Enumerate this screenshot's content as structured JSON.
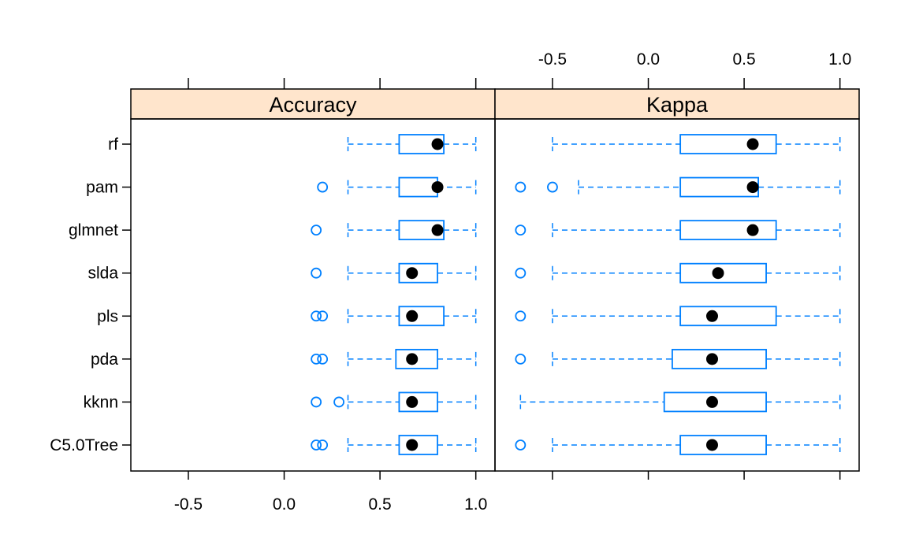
{
  "chart_data": {
    "type": "boxplot",
    "layout": "lattice bwplot, two horizontal panels",
    "x_range": [
      -0.8,
      1.1
    ],
    "ticks": [
      -0.5,
      0.0,
      0.5,
      1.0
    ],
    "tick_labels": [
      "-0.5",
      "0.0",
      "0.5",
      "1.0"
    ],
    "models": [
      "rf",
      "pam",
      "glmnet",
      "slda",
      "pls",
      "pda",
      "kknn",
      "C5.0Tree"
    ],
    "colors": {
      "box": "#0080ff",
      "median": "#000000",
      "strip": "#ffe5cc",
      "frame": "#000000"
    },
    "panels": [
      {
        "name": "Accuracy",
        "tick_side": "bottom",
        "boxes": [
          {
            "model": "rf",
            "whisker_low": 0.333,
            "q1": 0.6,
            "median": 0.8,
            "q3": 0.833,
            "whisker_high": 1.0,
            "outliers": []
          },
          {
            "model": "pam",
            "whisker_low": 0.333,
            "q1": 0.6,
            "median": 0.8,
            "q3": 0.8,
            "whisker_high": 1.0,
            "outliers": [
              0.2
            ]
          },
          {
            "model": "glmnet",
            "whisker_low": 0.333,
            "q1": 0.6,
            "median": 0.8,
            "q3": 0.833,
            "whisker_high": 1.0,
            "outliers": [
              0.167
            ]
          },
          {
            "model": "slda",
            "whisker_low": 0.333,
            "q1": 0.6,
            "median": 0.667,
            "q3": 0.8,
            "whisker_high": 1.0,
            "outliers": [
              0.167
            ]
          },
          {
            "model": "pls",
            "whisker_low": 0.333,
            "q1": 0.6,
            "median": 0.667,
            "q3": 0.833,
            "whisker_high": 1.0,
            "outliers": [
              0.167,
              0.2
            ]
          },
          {
            "model": "pda",
            "whisker_low": 0.333,
            "q1": 0.583,
            "median": 0.667,
            "q3": 0.8,
            "whisker_high": 1.0,
            "outliers": [
              0.167,
              0.2
            ]
          },
          {
            "model": "kknn",
            "whisker_low": 0.333,
            "q1": 0.6,
            "median": 0.667,
            "q3": 0.8,
            "whisker_high": 1.0,
            "outliers": [
              0.167,
              0.286
            ]
          },
          {
            "model": "C5.0Tree",
            "whisker_low": 0.333,
            "q1": 0.6,
            "median": 0.667,
            "q3": 0.8,
            "whisker_high": 1.0,
            "outliers": [
              0.167,
              0.2
            ]
          }
        ]
      },
      {
        "name": "Kappa",
        "tick_side": "top",
        "boxes": [
          {
            "model": "rf",
            "whisker_low": -0.5,
            "q1": 0.167,
            "median": 0.545,
            "q3": 0.667,
            "whisker_high": 1.0,
            "outliers": []
          },
          {
            "model": "pam",
            "whisker_low": -0.364,
            "q1": 0.167,
            "median": 0.545,
            "q3": 0.574,
            "whisker_high": 1.0,
            "outliers": [
              -0.667,
              -0.5
            ]
          },
          {
            "model": "glmnet",
            "whisker_low": -0.5,
            "q1": 0.167,
            "median": 0.545,
            "q3": 0.667,
            "whisker_high": 1.0,
            "outliers": [
              -0.667
            ]
          },
          {
            "model": "slda",
            "whisker_low": -0.5,
            "q1": 0.167,
            "median": 0.364,
            "q3": 0.615,
            "whisker_high": 1.0,
            "outliers": [
              -0.667
            ]
          },
          {
            "model": "pls",
            "whisker_low": -0.5,
            "q1": 0.167,
            "median": 0.333,
            "q3": 0.667,
            "whisker_high": 1.0,
            "outliers": [
              -0.667
            ]
          },
          {
            "model": "pda",
            "whisker_low": -0.5,
            "q1": 0.125,
            "median": 0.333,
            "q3": 0.615,
            "whisker_high": 1.0,
            "outliers": [
              -0.667
            ]
          },
          {
            "model": "kknn",
            "whisker_low": -0.667,
            "q1": 0.083,
            "median": 0.333,
            "q3": 0.615,
            "whisker_high": 1.0,
            "outliers": []
          },
          {
            "model": "C5.0Tree",
            "whisker_low": -0.5,
            "q1": 0.167,
            "median": 0.333,
            "q3": 0.615,
            "whisker_high": 1.0,
            "outliers": [
              -0.667
            ]
          }
        ]
      }
    ]
  }
}
